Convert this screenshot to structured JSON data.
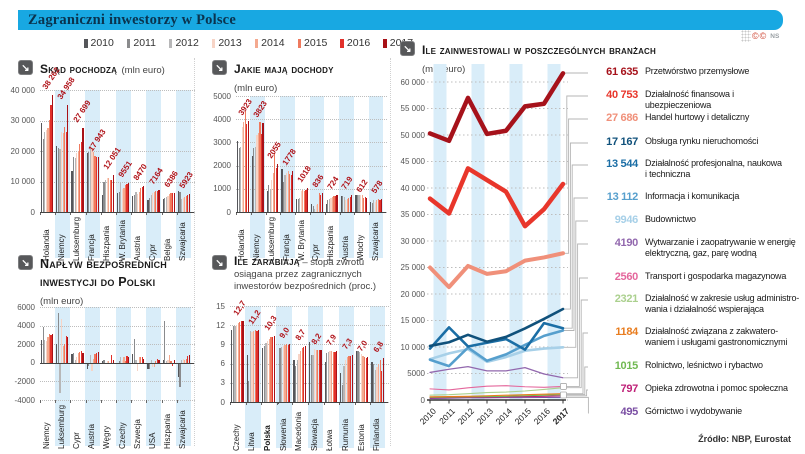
{
  "page": {
    "title": "Zagraniczni inwestorzy w Polsce",
    "copyright": "NS",
    "source": "Źródło: NBP, Eurostat"
  },
  "year_legend": {
    "years": [
      "2010",
      "2011",
      "2012",
      "2013",
      "2014",
      "2015",
      "2016",
      "2017"
    ],
    "colors": [
      "#55565a",
      "#8a8b8d",
      "#b7b7b8",
      "#f7d4c6",
      "#f4a98f",
      "#ef7a5e",
      "#e2302a",
      "#a81117"
    ]
  },
  "chart_data": [
    {
      "id": "origin",
      "type": "bar",
      "title": "Skąd pochodzą",
      "subtitle": "(mln euro)",
      "categories": [
        "Holandia",
        "Niemcy",
        "Luksemburg",
        "Francja",
        "Hiszpania",
        "W. Brytania",
        "Austria",
        "Cypr",
        "Belgia",
        "Szwajcaria"
      ],
      "years": [
        "2010",
        "2011",
        "2012",
        "2013",
        "2014",
        "2015",
        "2016",
        "2017"
      ],
      "values": [
        [
          29300,
          24000,
          26100,
          26800,
          27400,
          30300,
          35000,
          38262
        ],
        [
          21500,
          21000,
          20800,
          26300,
          25800,
          27900,
          26100,
          34958
        ],
        [
          13500,
          18000,
          17600,
          19200,
          20100,
          22400,
          22900,
          27699
        ],
        [
          19300,
          19600,
          21900,
          20900,
          19800,
          18400,
          18100,
          17943
        ],
        [
          5500,
          9800,
          10400,
          11200,
          11000,
          10600,
          10400,
          12051
        ],
        [
          6300,
          6400,
          9400,
          7500,
          8000,
          8900,
          9100,
          9551
        ],
        [
          5400,
          5500,
          6500,
          6000,
          6400,
          7900,
          8100,
          8470
        ],
        [
          3800,
          4700,
          5600,
          6200,
          6700,
          6900,
          7000,
          7164
        ],
        [
          4300,
          4500,
          5000,
          5400,
          5900,
          6100,
          6200,
          6386
        ],
        [
          6800,
          6700,
          4300,
          4500,
          5000,
          5400,
          5600,
          5923
        ]
      ],
      "value_labels": [
        "38 262",
        "34 958",
        "27 699",
        "17 943",
        "12 051",
        "9551",
        "8470",
        "7164",
        "6386",
        "5923"
      ],
      "ylim": [
        0,
        40000
      ],
      "yticks": [
        {
          "v": 40000,
          "label": "40 000"
        },
        {
          "v": 30000,
          "label": "30 000"
        },
        {
          "v": 20000,
          "label": "20 000"
        },
        {
          "v": 10000,
          "label": "10 000"
        },
        {
          "v": 0,
          "label": "0"
        }
      ]
    },
    {
      "id": "income",
      "type": "bar",
      "title": "Jakie mają dochody",
      "subtitle": "(mln euro)",
      "categories": [
        "Holandia",
        "Niemcy",
        "Luksemburg",
        "Francja",
        "W. Brytania",
        "Cypr",
        "Hiszpania",
        "Austria",
        "Włochy",
        "Szwajcaria"
      ],
      "years": [
        "2010",
        "2011",
        "2012",
        "2013",
        "2014",
        "2015",
        "2016",
        "2017"
      ],
      "values": [
        [
          3050,
          2750,
          2800,
          3650,
          3900,
          4350,
          3800,
          3923
        ],
        [
          2400,
          2750,
          2800,
          3300,
          3400,
          3900,
          3350,
          3823
        ],
        [
          900,
          1150,
          1000,
          1400,
          1700,
          2550,
          1900,
          2055
        ],
        [
          1850,
          1300,
          1600,
          1700,
          1750,
          1650,
          1600,
          1778
        ],
        [
          550,
          550,
          600,
          900,
          950,
          900,
          950,
          1018
        ],
        [
          350,
          250,
          150,
          300,
          350,
          800,
          750,
          836
        ],
        [
          350,
          500,
          550,
          600,
          650,
          700,
          700,
          724
        ],
        [
          700,
          700,
          650,
          500,
          550,
          600,
          650,
          719
        ],
        [
          750,
          750,
          750,
          750,
          750,
          600,
          650,
          612
        ],
        [
          450,
          400,
          500,
          450,
          500,
          550,
          520,
          578
        ]
      ],
      "value_labels": [
        "3923",
        "3823",
        "2055",
        "1778",
        "1018",
        "836",
        "724",
        "719",
        "612",
        "578"
      ],
      "ylim": [
        0,
        5000
      ],
      "yticks": [
        {
          "v": 5000,
          "label": "5000"
        },
        {
          "v": 4000,
          "label": "4000"
        },
        {
          "v": 3000,
          "label": "3000"
        },
        {
          "v": 2000,
          "label": "2000"
        },
        {
          "v": 1000,
          "label": "1000"
        },
        {
          "v": 0,
          "label": "0"
        }
      ]
    },
    {
      "id": "inflow",
      "type": "bar",
      "title": "Napływ bezpośrednich inwestycji do Polski",
      "subtitle": "(mln euro)",
      "categories": [
        "Niemcy",
        "Luksemburg",
        "Cypr",
        "Austria",
        "Węgry",
        "Czechy",
        "Szwecja",
        "USA",
        "Hiszpania",
        "Szwajcaria"
      ],
      "years": [
        "2010",
        "2011",
        "2012",
        "2013",
        "2014",
        "2015",
        "2016",
        "2017"
      ],
      "values": [
        [
          2400,
          3800,
          2500,
          2300,
          2800,
          3100,
          3000,
          3100
        ],
        [
          2000,
          5400,
          -3200,
          4700,
          1800,
          2000,
          2900,
          2800
        ],
        [
          900,
          1100,
          300,
          600,
          1100,
          1200,
          1250,
          1100
        ],
        [
          -700,
          -300,
          850,
          -900,
          400,
          1000,
          1100,
          1150
        ],
        [
          200,
          300,
          -150,
          200,
          150,
          -100,
          850,
          300
        ],
        [
          -100,
          200,
          600,
          300,
          600,
          150,
          700,
          650
        ],
        [
          1000,
          2600,
          300,
          -900,
          600,
          650,
          600,
          400
        ],
        [
          -700,
          -700,
          300,
          -500,
          -400,
          150,
          400,
          300
        ],
        [
          300,
          4450,
          150,
          300,
          850,
          200,
          -350,
          250
        ],
        [
          -1500,
          -2600,
          300,
          400,
          300,
          450,
          700,
          800
        ]
      ],
      "value_labels": [],
      "ylim": [
        -4000,
        6000
      ],
      "yticks": [
        {
          "v": 6000,
          "label": "6000"
        },
        {
          "v": 4000,
          "label": "4000"
        },
        {
          "v": 2000,
          "label": "2000"
        },
        {
          "v": 0,
          "label": "0"
        },
        {
          "v": -2000,
          "label": "-2000"
        },
        {
          "v": -4000,
          "label": "-4000"
        }
      ]
    },
    {
      "id": "returns",
      "type": "bar",
      "title": "Ile zarabiają",
      "subtitle": "– stopa zwrotu osiągana przez zagranicznych inwestorów bezpośrednich (proc.)",
      "categories": [
        "Czechy",
        "Litwa",
        "Polska",
        "Słowenia",
        "Macedonia",
        "Słowacja",
        "Łotwa",
        "Rumunia",
        "Estonia",
        "Finlandia"
      ],
      "bold_category": "Polska",
      "years": [
        "2010",
        "2011",
        "2012",
        "2013",
        "2014",
        "2015",
        "2016",
        "2017"
      ],
      "values": [
        [
          11.3,
          11.9,
          11.8,
          12.1,
          12.3,
          12.5,
          12.6,
          12.7
        ],
        [
          7.3,
          3.3,
          11.1,
          11.0,
          11.1,
          11.2,
          11.1,
          11.2
        ],
        [
          8.5,
          8.8,
          9.2,
          9.6,
          9.9,
          10.1,
          10.2,
          10.3
        ],
        [
          -0.3,
          8.4,
          8.6,
          8.8,
          8.9,
          9.0,
          8.9,
          9.0
        ],
        [
          6.6,
          5.6,
          6.5,
          7.5,
          8.0,
          8.4,
          8.6,
          8.7
        ],
        [
          9.3,
          7.4,
          7.3,
          8.3,
          8.1,
          8.2,
          8.1,
          8.2
        ],
        [
          6.3,
          7.7,
          7.8,
          7.9,
          8.0,
          7.8,
          7.8,
          7.9
        ],
        [
          4.6,
          2.7,
          5.7,
          6.5,
          7.0,
          7.2,
          7.2,
          7.3
        ],
        [
          8.0,
          7.9,
          7.8,
          7.5,
          7.2,
          7.0,
          6.9,
          7.0
        ],
        [
          6.3,
          6.0,
          5.0,
          5.5,
          6.0,
          6.5,
          4.9,
          6.8
        ]
      ],
      "value_labels": [
        "12,7",
        "11,2",
        "10,3",
        "9,0",
        "8,7",
        "8,2",
        "7,9",
        "7,3",
        "7,0",
        "6,8"
      ],
      "ylim": [
        0,
        15
      ],
      "yticks": [
        {
          "v": 15,
          "label": "15"
        },
        {
          "v": 12,
          "label": "12"
        },
        {
          "v": 9,
          "label": "9"
        },
        {
          "v": 6,
          "label": "6"
        },
        {
          "v": 3,
          "label": "3"
        },
        {
          "v": 0,
          "label": "0"
        }
      ]
    },
    {
      "id": "sectors",
      "type": "line",
      "title": "Ile zainwestowali w poszczególnych branżach",
      "subtitle": "(mln euro)",
      "x": [
        "2010",
        "2011",
        "2012",
        "2013",
        "2014",
        "2015",
        "2016",
        "2017"
      ],
      "ylim": [
        0,
        60000
      ],
      "yticks": [
        {
          "v": 60000,
          "label": "60 000"
        },
        {
          "v": 55000,
          "label": "55 000"
        },
        {
          "v": 50000,
          "label": "50 000"
        },
        {
          "v": 45000,
          "label": "45 000"
        },
        {
          "v": 40000,
          "label": "40 000"
        },
        {
          "v": 35000,
          "label": "35 000"
        },
        {
          "v": 30000,
          "label": "30 000"
        },
        {
          "v": 25000,
          "label": "25 000"
        },
        {
          "v": 20000,
          "label": "20 000"
        },
        {
          "v": 15000,
          "label": "15 000"
        },
        {
          "v": 10000,
          "label": "10 000"
        },
        {
          "v": 5000,
          "label": "5000"
        },
        {
          "v": 0,
          "label": "0"
        }
      ],
      "series": [
        {
          "name": "Przetwórstwo przemysłowe",
          "label": "61 635",
          "color": "#a6121b",
          "width": 4.5,
          "values": [
            50300,
            48900,
            57000,
            50200,
            50800,
            55400,
            55900,
            61635
          ]
        },
        {
          "name": "Działalność finansowa i ubezpieczeniowa",
          "label": "40 753",
          "color": "#e8362b",
          "width": 4.5,
          "values": [
            38000,
            35200,
            43700,
            41500,
            39300,
            32800,
            36000,
            40753
          ]
        },
        {
          "name": "Handel hurtowy i detaliczny",
          "label": "27 686",
          "color": "#f0907a",
          "width": 4,
          "values": [
            25000,
            21300,
            25300,
            23800,
            24300,
            26300,
            26900,
            27686
          ]
        },
        {
          "name": "Obsługa rynku nieruchomości",
          "label": "17 167",
          "color": "#10517b",
          "width": 2.6,
          "values": [
            10200,
            10900,
            12300,
            11000,
            11900,
            13500,
            15300,
            17167
          ]
        },
        {
          "name": "Działalność profesjonalna, naukowa\ni techniczna",
          "label": "13 544",
          "color": "#1b6ea5",
          "width": 2.6,
          "values": [
            9700,
            13700,
            10100,
            10800,
            11500,
            9500,
            14500,
            13544
          ]
        },
        {
          "name": "Informacja i komunikacja",
          "label": "13 112",
          "color": "#569fcd",
          "width": 2.6,
          "values": [
            7600,
            6400,
            9900,
            7400,
            8600,
            10400,
            12100,
            13112
          ]
        },
        {
          "name": "Budownictwo",
          "label": "9946",
          "color": "#a7d0e8",
          "width": 2.6,
          "values": [
            7700,
            8800,
            9600,
            7200,
            8100,
            9300,
            9700,
            9946
          ]
        },
        {
          "name": "Wytwarzanie i zaopatrywanie w energię\nelektryczną, gaz, parę wodną",
          "label": "4190",
          "color": "#9268ae",
          "width": 1.3,
          "values": [
            5200,
            5800,
            6300,
            5500,
            5500,
            6100,
            4900,
            4190
          ]
        },
        {
          "name": "Transport i gospodarka magazynowa",
          "label": "2560",
          "color": "#e4679c",
          "width": 1.1,
          "values": [
            2100,
            1900,
            2300,
            2600,
            2700,
            2500,
            2400,
            2560
          ]
        },
        {
          "name": "Działalność w zakresie usług administro-\nwania i działalność wspierająca",
          "label": "2321",
          "color": "#abd08e",
          "width": 1.1,
          "values": [
            900,
            1000,
            1200,
            1400,
            1500,
            1700,
            2000,
            2321
          ]
        },
        {
          "name": "Działalność związana z zakwatero-\nwaniem i usługami gastronomicznymi",
          "label": "1184",
          "color": "#e87c1e",
          "width": 1.1,
          "values": [
            600,
            650,
            700,
            800,
            900,
            1000,
            1100,
            1184
          ]
        },
        {
          "name": "Rolnictwo, leśnictwo i rybactwo",
          "label": "1015",
          "color": "#71b952",
          "width": 1.1,
          "values": [
            500,
            550,
            600,
            650,
            700,
            800,
            900,
            1015
          ]
        },
        {
          "name": "Opieka zdrowotna i pomoc społeczna",
          "label": "797",
          "color": "#bf2178",
          "width": 1.1,
          "values": [
            400,
            450,
            500,
            550,
            600,
            650,
            700,
            797
          ]
        },
        {
          "name": "Górnictwo i wydobywanie",
          "label": "495",
          "color": "#7a4ea3",
          "width": 1.1,
          "values": [
            300,
            350,
            400,
            400,
            450,
            450,
            470,
            495
          ]
        }
      ]
    }
  ]
}
